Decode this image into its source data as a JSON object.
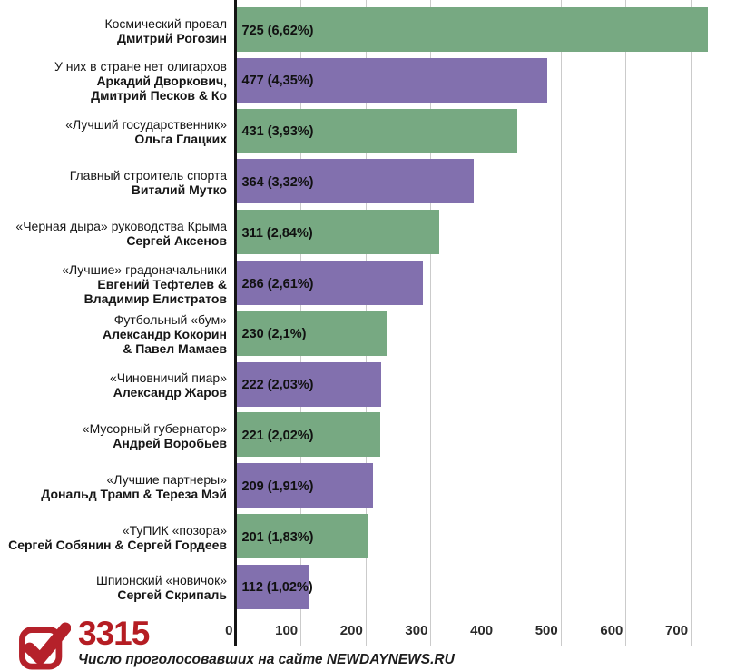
{
  "chart_data": {
    "type": "bar",
    "orientation": "horizontal",
    "title": "",
    "xlabel": "",
    "ylabel": "",
    "xlim": [
      0,
      770
    ],
    "x_ticks": [
      0,
      100,
      200,
      300,
      400,
      500,
      600,
      700
    ],
    "grid": true,
    "legend": "none",
    "colors": {
      "green": "#77a982",
      "purple": "#8270ae"
    },
    "bars": [
      {
        "category_lines": [
          "Космический провал"
        ],
        "name_lines": [
          "Дмитрий Рогозин"
        ],
        "value": 725,
        "value_label": "725 (6,62%)",
        "color": "green"
      },
      {
        "category_lines": [
          "У них в стране нет олигархов"
        ],
        "name_lines": [
          "Аркадий Дворкович,",
          "Дмитрий Песков & Ко"
        ],
        "value": 477,
        "value_label": "477 (4,35%)",
        "color": "purple"
      },
      {
        "category_lines": [
          "«Лучший государственник»"
        ],
        "name_lines": [
          "Ольга Глацких"
        ],
        "value": 431,
        "value_label": "431 (3,93%)",
        "color": "green"
      },
      {
        "category_lines": [
          "Главный строитель спорта"
        ],
        "name_lines": [
          "Виталий Мутко"
        ],
        "value": 364,
        "value_label": "364 (3,32%)",
        "color": "purple"
      },
      {
        "category_lines": [
          "«Черная дыра» руководства Крыма"
        ],
        "name_lines": [
          "Сергей Аксенов"
        ],
        "value": 311,
        "value_label": "311 (2,84%)",
        "color": "green"
      },
      {
        "category_lines": [
          "«Лучшие» градоначальники"
        ],
        "name_lines": [
          "Евгений Тефтелев &",
          "Владимир Елистратов"
        ],
        "value": 286,
        "value_label": "286 (2,61%)",
        "color": "purple"
      },
      {
        "category_lines": [
          "Футбольный «бум»"
        ],
        "name_lines": [
          "Александр Кокорин",
          "& Павел Мамаев"
        ],
        "value": 230,
        "value_label": "230 (2,1%)",
        "color": "green"
      },
      {
        "category_lines": [
          "«Чиновничий пиар»"
        ],
        "name_lines": [
          "Александр Жаров"
        ],
        "value": 222,
        "value_label": "222 (2,03%)",
        "color": "purple"
      },
      {
        "category_lines": [
          "«Мусорный губернатор»"
        ],
        "name_lines": [
          "Андрей Воробьев"
        ],
        "value": 221,
        "value_label": "221 (2,02%)",
        "color": "green"
      },
      {
        "category_lines": [
          "«Лучшие партнеры»"
        ],
        "name_lines": [
          "Дональд Трамп & Тереза Мэй"
        ],
        "value": 209,
        "value_label": "209 (1,91%)",
        "color": "purple"
      },
      {
        "category_lines": [
          "«ТуПИК «позора»"
        ],
        "name_lines": [
          "Сергей Собянин & Сергей Гордеев"
        ],
        "value": 201,
        "value_label": "201 (1,83%)",
        "color": "green"
      },
      {
        "category_lines": [
          "Шпионский «новичок»"
        ],
        "name_lines": [
          "Сергей Скрипаль"
        ],
        "value": 112,
        "value_label": "112 (1,02%)",
        "color": "purple"
      }
    ]
  },
  "footer": {
    "total_votes": "3315",
    "caption": "Число проголосовавших на сайте NEWDAYNEWS.RU",
    "accent_color": "#b51d23",
    "icon": "checkbox-checked-icon"
  }
}
